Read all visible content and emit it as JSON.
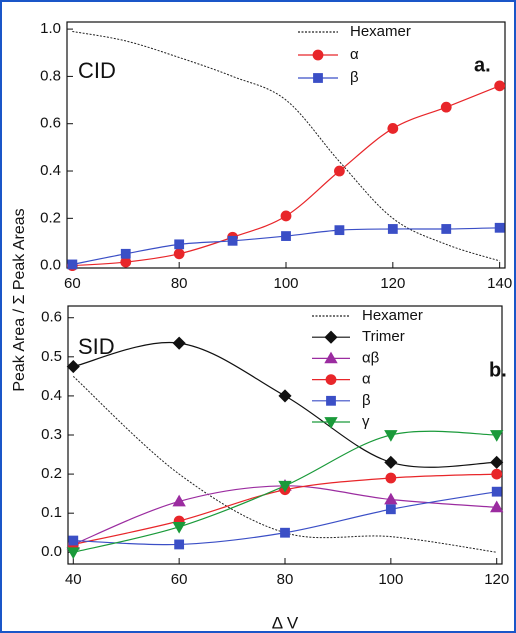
{
  "chart_data": [
    {
      "type": "line",
      "label": "CID",
      "panel_label": "a.",
      "y_label": "Peak Area / Σ Peak Areas",
      "x": [
        60,
        70,
        80,
        90,
        100,
        110,
        120,
        130,
        140
      ],
      "xlim": [
        59,
        141
      ],
      "ylim": [
        -0.01,
        1.03
      ],
      "xticks": [
        60,
        80,
        100,
        120,
        140
      ],
      "yticks": [
        {
          "value": 0,
          "label": "0.0"
        },
        0.2,
        0.4,
        0.6,
        0.8,
        {
          "value": 1,
          "label": "1.0"
        }
      ],
      "series": [
        {
          "name": "Hexamer",
          "color": "#222222",
          "dash": "dotted",
          "marker": "none",
          "values": [
            0.99,
            0.95,
            0.88,
            0.8,
            0.7,
            0.44,
            0.2,
            0.09,
            0.02
          ]
        },
        {
          "name": "α",
          "color": "#e8262a",
          "dash": "solid",
          "marker": "circle",
          "values": [
            0.0,
            0.015,
            0.05,
            0.12,
            0.21,
            0.4,
            0.58,
            0.67,
            0.76
          ]
        },
        {
          "name": "β",
          "color": "#3b4fc6",
          "dash": "solid",
          "marker": "square",
          "values": [
            0.005,
            0.05,
            0.09,
            0.105,
            0.125,
            0.15,
            0.155,
            0.155,
            0.16
          ]
        }
      ]
    },
    {
      "type": "line",
      "label": "SID",
      "panel_label": "b.",
      "x_label": "Δ V",
      "x": [
        40,
        60,
        80,
        100,
        120
      ],
      "xlim": [
        39,
        121
      ],
      "ylim": [
        -0.03,
        0.63
      ],
      "xticks": [
        40,
        60,
        80,
        100,
        120
      ],
      "yticks": [
        {
          "value": 0,
          "label": "0.0"
        },
        0.1,
        0.2,
        0.3,
        0.4,
        0.5,
        0.6
      ],
      "series": [
        {
          "name": "Hexamer",
          "color": "#222222",
          "dash": "dotted",
          "marker": "none",
          "values": [
            0.45,
            0.2,
            0.05,
            0.04,
            0.0
          ]
        },
        {
          "name": "Trimer",
          "color": "#111111",
          "dash": "solid",
          "marker": "diamond",
          "values": [
            0.475,
            0.535,
            0.4,
            0.23,
            0.23
          ]
        },
        {
          "name": "αβ",
          "color": "#9b2ca0",
          "dash": "solid",
          "marker": "triangle-up",
          "values": [
            0.02,
            0.13,
            0.17,
            0.135,
            0.115
          ]
        },
        {
          "name": "α",
          "color": "#e8262a",
          "dash": "solid",
          "marker": "circle",
          "values": [
            0.02,
            0.08,
            0.16,
            0.19,
            0.2
          ]
        },
        {
          "name": "β",
          "color": "#3b4fc6",
          "dash": "solid",
          "marker": "square",
          "values": [
            0.03,
            0.02,
            0.05,
            0.11,
            0.155
          ]
        },
        {
          "name": "γ",
          "color": "#1a9a3a",
          "dash": "solid",
          "marker": "triangle-down",
          "values": [
            0.0,
            0.065,
            0.17,
            0.3,
            0.3
          ]
        }
      ]
    }
  ]
}
